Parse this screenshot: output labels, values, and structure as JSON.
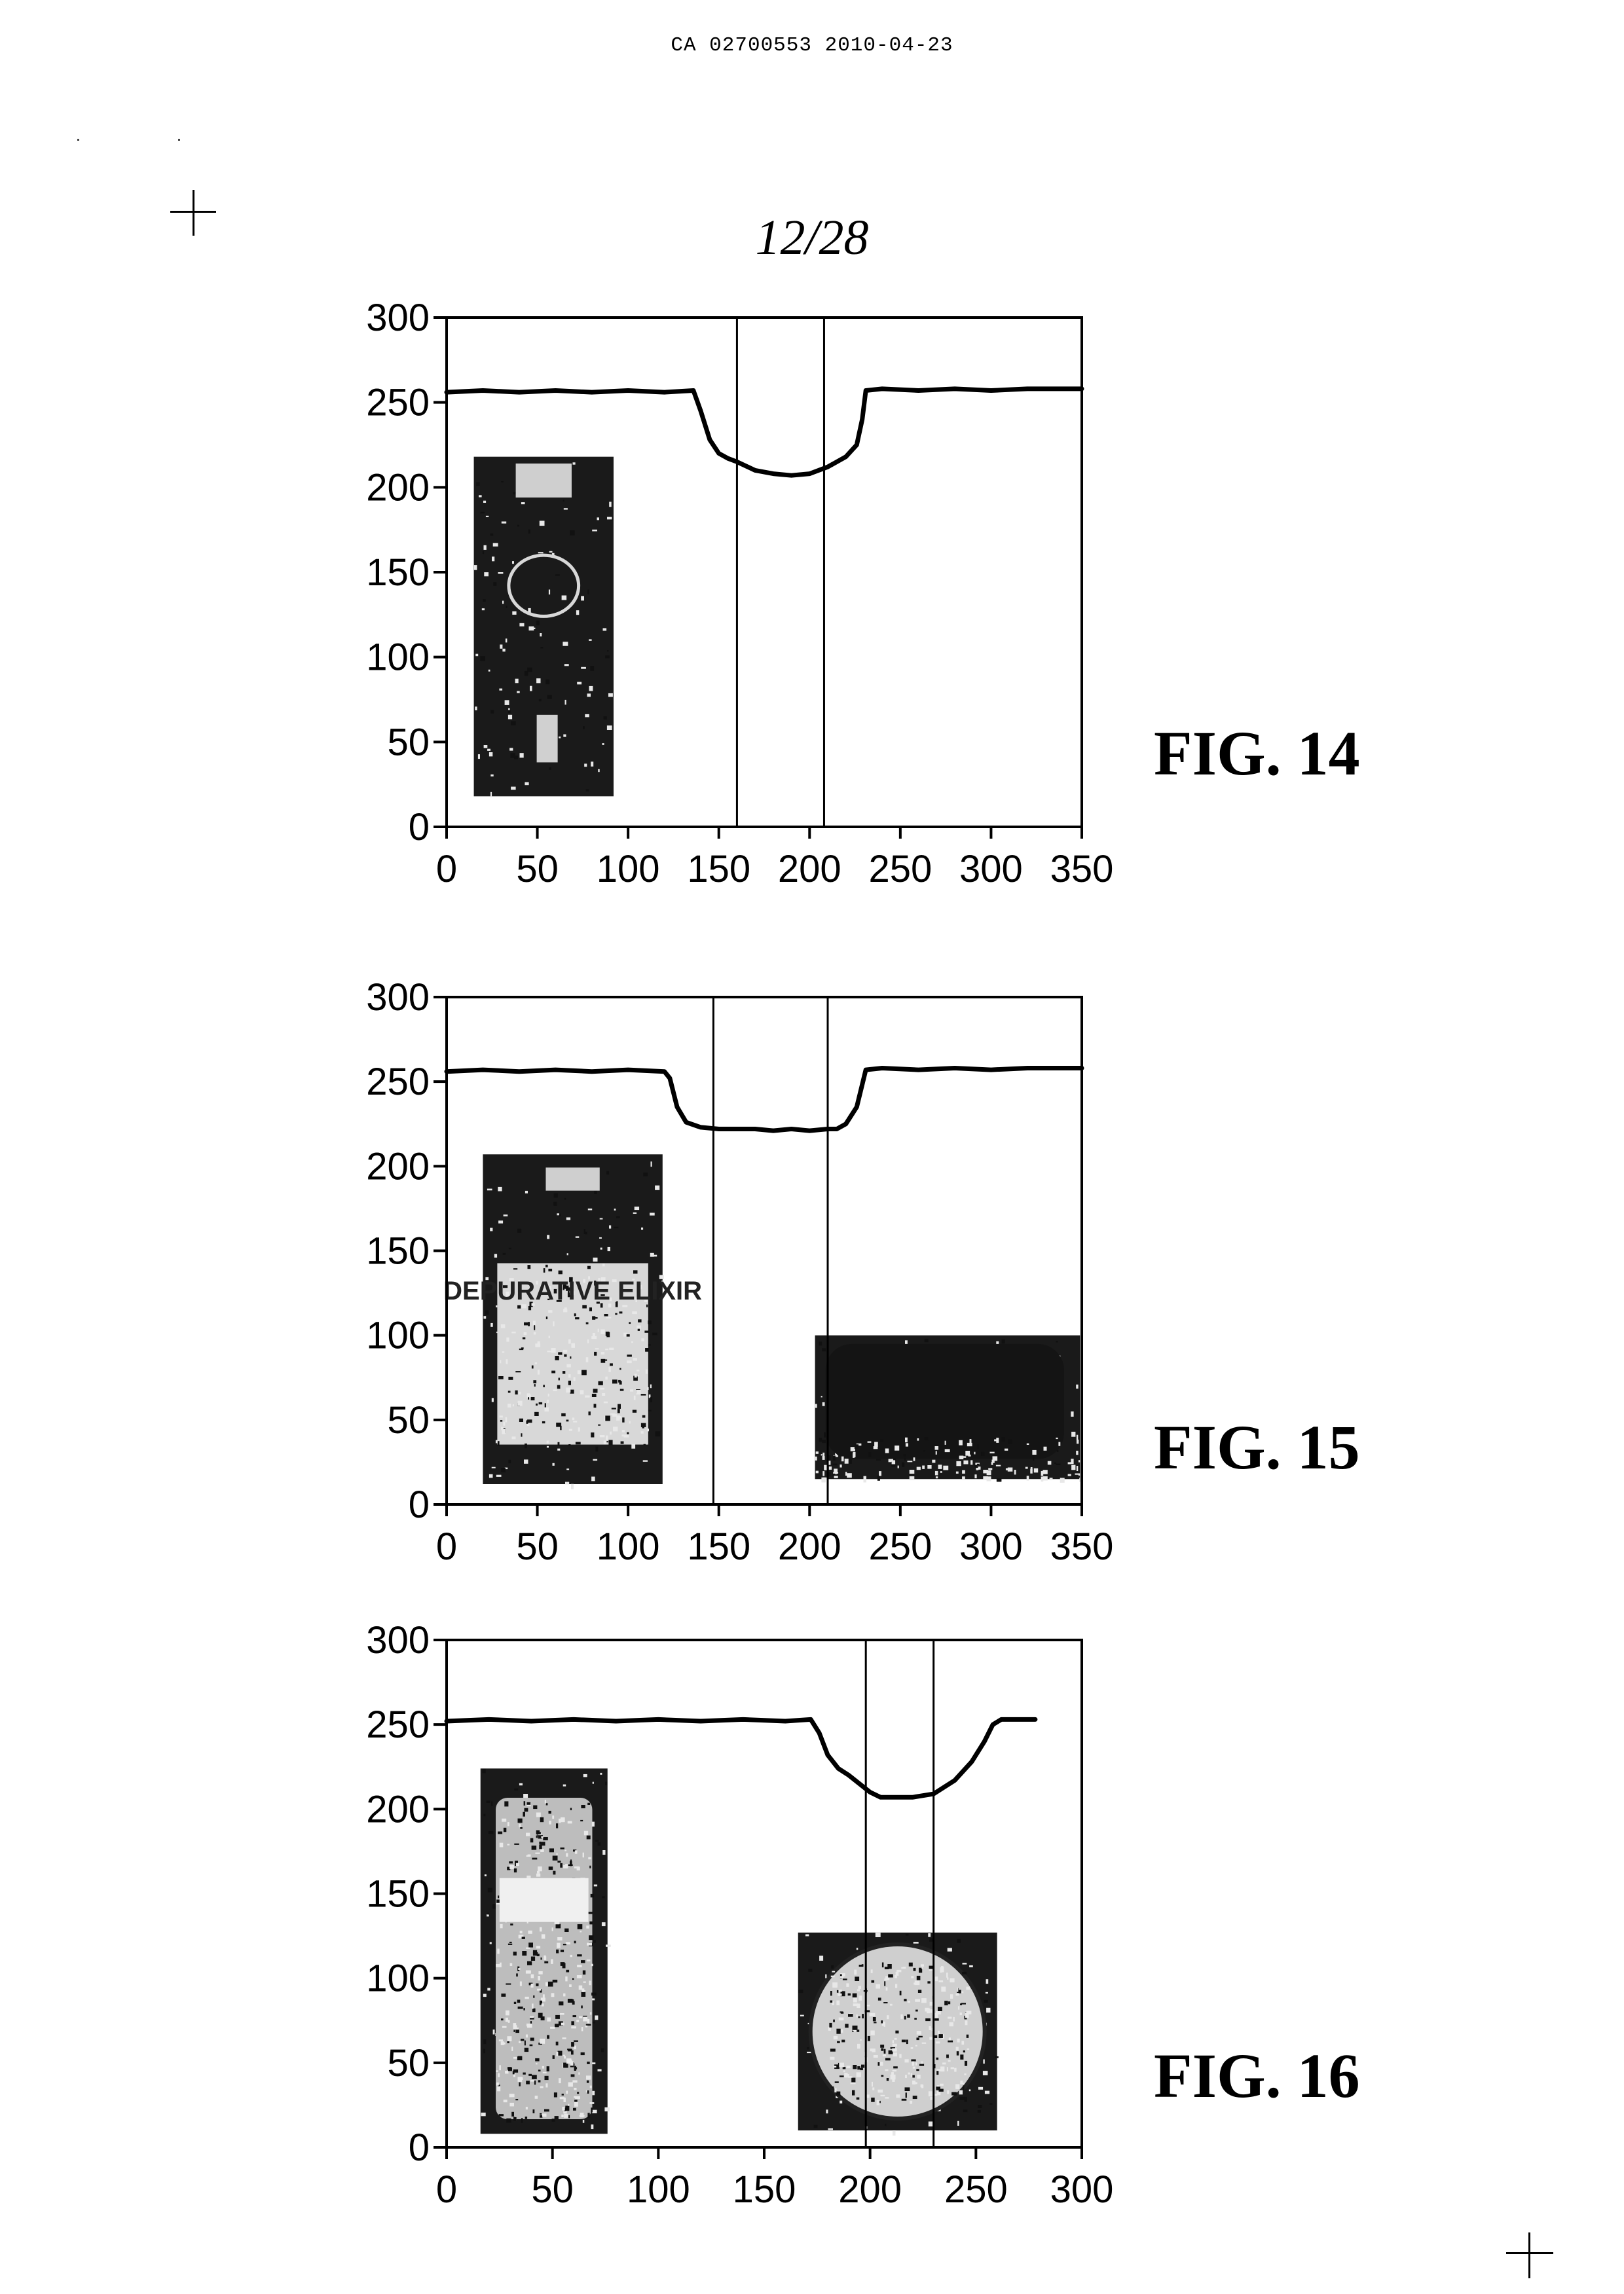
{
  "header": {
    "doc_id": "CA 02700553 2010-04-23",
    "sheet": "12/28"
  },
  "chart_data": [
    {
      "type": "line",
      "figure_label": "FIG. 14",
      "xlim": [
        0,
        350
      ],
      "ylim": [
        0,
        300
      ],
      "xticks": [
        0,
        50,
        100,
        150,
        200,
        250,
        300,
        350
      ],
      "yticks": [
        0,
        50,
        100,
        150,
        200,
        250,
        300
      ],
      "grid": false,
      "vlines": [
        160,
        208
      ],
      "series": [
        {
          "x": [
            0,
            20,
            40,
            60,
            80,
            100,
            120,
            136,
            140,
            145,
            150,
            155,
            160,
            170,
            180,
            190,
            200,
            210,
            220,
            226,
            229,
            231,
            240,
            260,
            280,
            300,
            320,
            350
          ],
          "y": [
            256,
            257,
            256,
            257,
            256,
            257,
            256,
            257,
            245,
            228,
            220,
            217,
            215,
            210,
            208,
            207,
            208,
            212,
            218,
            225,
            240,
            257,
            258,
            257,
            258,
            257,
            258,
            258
          ]
        }
      ],
      "insets": [
        {
          "name": "bottle-photo",
          "x_range": [
            15,
            92
          ],
          "y_range": [
            18,
            218
          ]
        }
      ]
    },
    {
      "type": "line",
      "figure_label": "FIG. 15",
      "xlim": [
        0,
        350
      ],
      "ylim": [
        0,
        300
      ],
      "xticks": [
        0,
        50,
        100,
        150,
        200,
        250,
        300,
        350
      ],
      "yticks": [
        0,
        50,
        100,
        150,
        200,
        250,
        300
      ],
      "grid": false,
      "vlines": [
        147,
        210
      ],
      "series": [
        {
          "x": [
            0,
            20,
            40,
            60,
            80,
            100,
            120,
            123,
            127,
            132,
            140,
            150,
            160,
            170,
            180,
            190,
            200,
            210,
            215,
            220,
            226,
            231,
            240,
            260,
            280,
            300,
            320,
            350
          ],
          "y": [
            256,
            257,
            256,
            257,
            256,
            257,
            256,
            252,
            235,
            226,
            223,
            222,
            222,
            222,
            221,
            222,
            221,
            222,
            222,
            225,
            235,
            257,
            258,
            257,
            258,
            257,
            258,
            258
          ]
        }
      ],
      "insets": [
        {
          "name": "elixir-bottle-photo",
          "x_range": [
            20,
            119
          ],
          "y_range": [
            12,
            207
          ],
          "text": "DEPURATIVE ELIXIR"
        },
        {
          "name": "bottle-cap-photo",
          "x_range": [
            203,
            349
          ],
          "y_range": [
            15,
            100
          ]
        }
      ]
    },
    {
      "type": "line",
      "figure_label": "FIG. 16",
      "xlim": [
        0,
        300
      ],
      "ylim": [
        0,
        300
      ],
      "xticks": [
        0,
        50,
        100,
        150,
        200,
        250,
        300
      ],
      "yticks": [
        0,
        50,
        100,
        150,
        200,
        250,
        300
      ],
      "grid": false,
      "vlines": [
        198,
        230
      ],
      "series": [
        {
          "x": [
            0,
            20,
            40,
            60,
            80,
            100,
            120,
            140,
            160,
            172,
            176,
            180,
            185,
            190,
            195,
            200,
            205,
            210,
            220,
            230,
            240,
            248,
            254,
            258,
            262,
            270,
            278
          ],
          "y": [
            252,
            253,
            252,
            253,
            252,
            253,
            252,
            253,
            252,
            253,
            245,
            232,
            224,
            220,
            215,
            210,
            207,
            207,
            207,
            209,
            217,
            228,
            240,
            250,
            253,
            253,
            253
          ]
        }
      ],
      "insets": [
        {
          "name": "water-bottle-photo",
          "x_range": [
            16,
            76
          ],
          "y_range": [
            8,
            224
          ]
        },
        {
          "name": "cap-top-photo",
          "x_range": [
            166,
            260
          ],
          "y_range": [
            10,
            127
          ]
        }
      ]
    }
  ]
}
